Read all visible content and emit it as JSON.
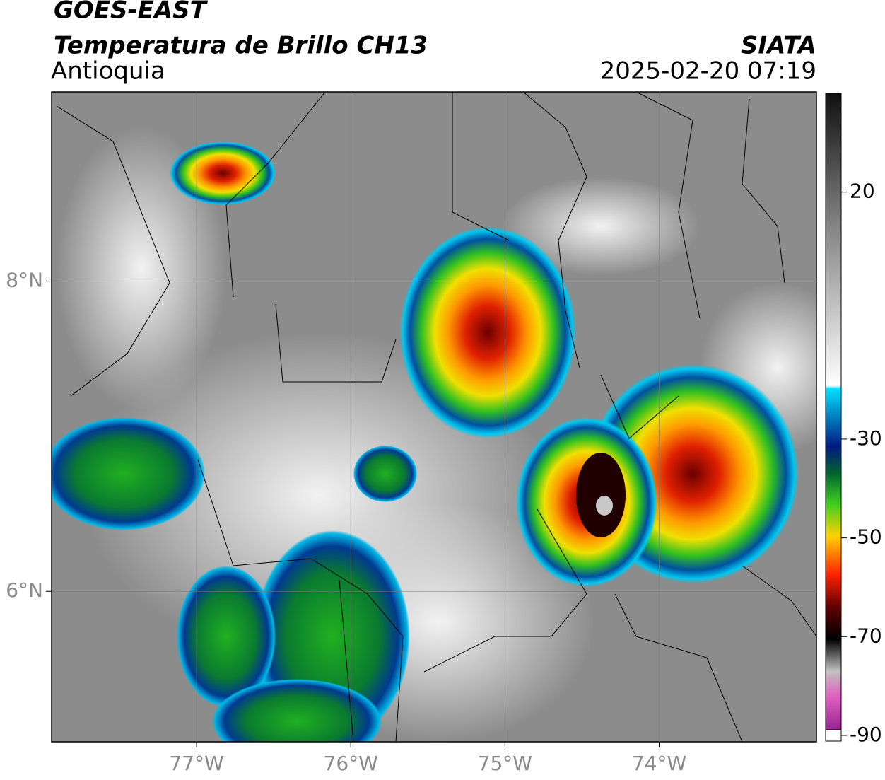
{
  "header": {
    "title": "GOES-EAST",
    "subtitle": "Temperatura de Brillo CH13",
    "region": "Antioquia",
    "source": "SIATA",
    "datetime": "2025-02-20 07:19"
  },
  "map": {
    "xlim": [
      -77.94,
      -72.98
    ],
    "ylim": [
      5.03,
      9.22
    ],
    "xticks": [
      {
        "value": -77,
        "label": "77°W"
      },
      {
        "value": -76,
        "label": "76°W"
      },
      {
        "value": -75,
        "label": "75°W"
      },
      {
        "value": -74,
        "label": "74°W"
      }
    ],
    "yticks": [
      {
        "value": 8,
        "label": "8°N"
      },
      {
        "value": 6,
        "label": "6°N"
      }
    ],
    "grid": true
  },
  "colorbar": {
    "lim": [
      -90,
      40
    ],
    "ticks": [
      20,
      -30,
      -50,
      -70,
      -90
    ]
  }
}
